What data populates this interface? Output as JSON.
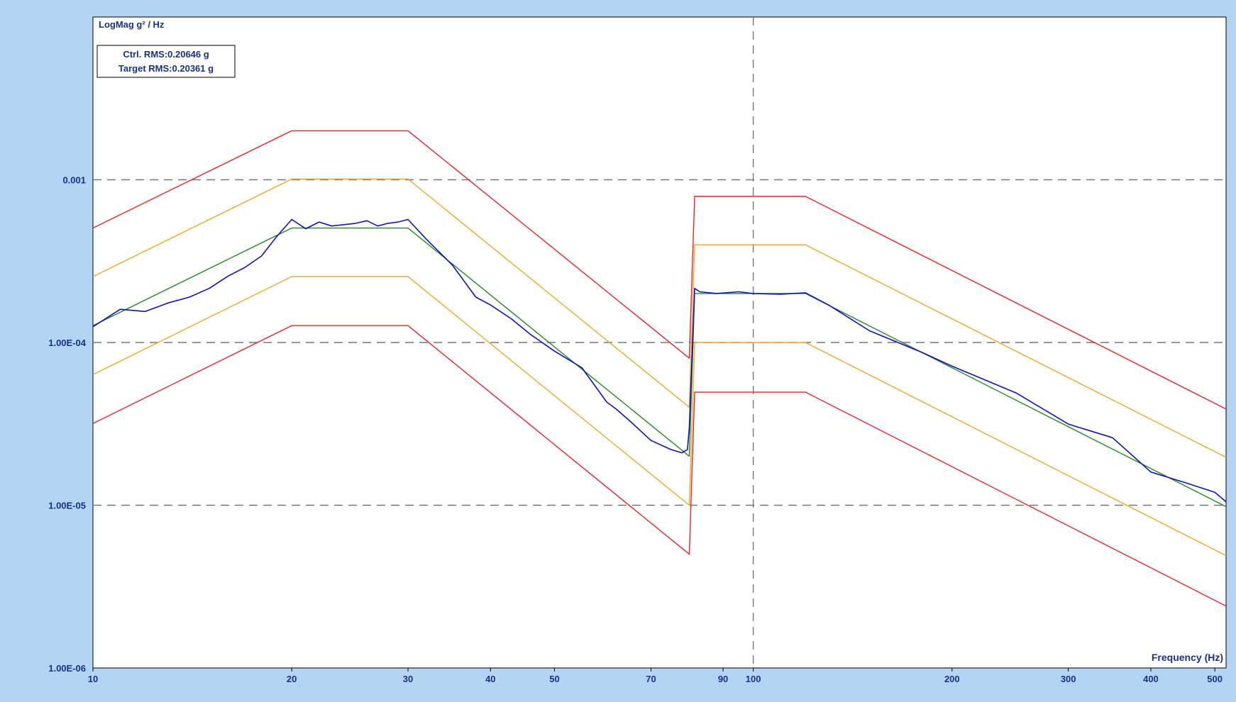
{
  "chart_data": {
    "type": "line",
    "ylabel": "LogMag g² / Hz",
    "xlabel": "Frequency (Hz)",
    "x_scale": "log",
    "y_scale": "log",
    "xlim": [
      10,
      520
    ],
    "ylim": [
      1e-06,
      0.01
    ],
    "grid": true,
    "x_ticks": [
      10,
      20,
      30,
      40,
      50,
      70,
      90,
      100,
      200,
      300,
      400,
      500
    ],
    "y_ticks": [
      {
        "value": 0.001,
        "label": "0.001"
      },
      {
        "value": 0.0001,
        "label": "1.00E-04"
      },
      {
        "value": 1e-05,
        "label": "1.00E-05"
      },
      {
        "value": 1e-06,
        "label": "1.00E-06"
      }
    ],
    "rms_box": {
      "ctrl": "Ctrl. RMS:0.20646 g",
      "target": "Target RMS:0.20361 g"
    },
    "series": [
      {
        "key": "abort_high",
        "color": "#ee2222",
        "x": [
          10,
          20,
          30,
          80,
          81.5,
          120,
          520
        ],
        "y": [
          0.000505,
          0.002,
          0.002,
          8e-05,
          0.00079,
          0.00079,
          3.9e-05
        ]
      },
      {
        "key": "alarm_high",
        "color": "#f5a623",
        "x": [
          10,
          20,
          30,
          80,
          81.5,
          120,
          520
        ],
        "y": [
          0.000254,
          0.00101,
          0.00101,
          4e-05,
          0.000398,
          0.000398,
          1.97e-05
        ]
      },
      {
        "key": "target",
        "color": "#228b22",
        "x": [
          10,
          20,
          30,
          80,
          81.5,
          120,
          520
        ],
        "y": [
          0.000127,
          0.000505,
          0.000505,
          2e-05,
          0.0002,
          0.0002,
          9.8e-06
        ]
      },
      {
        "key": "alarm_low",
        "color": "#f5a623",
        "x": [
          10,
          20,
          30,
          80,
          81.5,
          120,
          520
        ],
        "y": [
          6.35e-05,
          0.000254,
          0.000254,
          1e-05,
          0.0001,
          0.0001,
          4.9e-06
        ]
      },
      {
        "key": "abort_low",
        "color": "#ee2222",
        "x": [
          10,
          20,
          30,
          80,
          81.5,
          120,
          520
        ],
        "y": [
          3.18e-05,
          0.000127,
          0.000127,
          5e-06,
          4.95e-05,
          4.95e-05,
          2.4e-06
        ]
      },
      {
        "key": "control",
        "color": "#1010cc",
        "x": [
          10,
          11,
          12,
          13,
          14,
          15,
          16,
          17,
          18,
          19,
          20,
          21,
          22,
          23,
          24,
          25,
          26,
          27,
          28,
          29,
          30,
          32,
          35,
          38,
          40,
          43,
          46,
          50,
          55,
          60,
          62,
          65,
          70,
          75,
          78,
          79.5,
          80,
          81.5,
          83,
          88,
          95,
          100,
          110,
          120,
          130,
          150,
          180,
          200,
          250,
          300,
          350,
          400,
          450,
          500,
          520
        ],
        "y": [
          0.000125,
          0.00016,
          0.000155,
          0.000175,
          0.00019,
          0.000215,
          0.000255,
          0.00029,
          0.00034,
          0.00045,
          0.00057,
          0.0005,
          0.00055,
          0.00052,
          0.00053,
          0.00054,
          0.00056,
          0.00052,
          0.00054,
          0.00055,
          0.00057,
          0.00043,
          0.0003,
          0.00019,
          0.00017,
          0.00014,
          0.000112,
          8.85e-05,
          7e-05,
          4.3e-05,
          3.9e-05,
          3.3e-05,
          2.5e-05,
          2.2e-05,
          2.1e-05,
          2.2e-05,
          3e-05,
          0.000215,
          0.000205,
          0.0002,
          0.000205,
          0.0002,
          0.000198,
          0.000202,
          0.00017,
          0.000118,
          8.7e-05,
          7.15e-05,
          4.9e-05,
          3.15e-05,
          2.6e-05,
          1.6e-05,
          1.38e-05,
          1.2e-05,
          1.05e-05
        ]
      }
    ]
  }
}
